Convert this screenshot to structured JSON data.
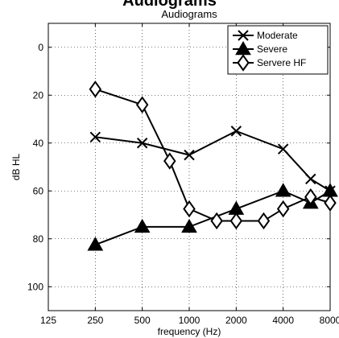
{
  "page_title": "Audiograms",
  "chart_data": {
    "type": "line",
    "title": "Audiograms",
    "xlabel": "frequency (Hz)",
    "ylabel": "dB HL",
    "x_scale": "log",
    "x_ticks": [
      125,
      250,
      500,
      1000,
      2000,
      4000,
      8000
    ],
    "x_tick_labels": [
      "125",
      "250",
      "500",
      "1000",
      "2000",
      "4000",
      "8000"
    ],
    "xlim": [
      125,
      8000
    ],
    "y_ticks": [
      0,
      20,
      40,
      60,
      80,
      100
    ],
    "y_tick_labels": [
      "0",
      "20",
      "40",
      "60",
      "80",
      "100"
    ],
    "ylim": [
      -10,
      110
    ],
    "y_inverted": true,
    "grid": true,
    "legend_position": "top-right",
    "series": [
      {
        "name": "Moderate",
        "marker": "x",
        "color": "#000000",
        "x": [
          250,
          500,
          1000,
          2000,
          4000,
          6000,
          8000
        ],
        "y": [
          37.5,
          40,
          45,
          35,
          42.5,
          55,
          60
        ]
      },
      {
        "name": "Severe",
        "marker": "triangle",
        "color": "#000000",
        "x": [
          250,
          500,
          1000,
          2000,
          4000,
          6000,
          8000
        ],
        "y": [
          82.5,
          75,
          75,
          67.5,
          60,
          65,
          60
        ]
      },
      {
        "name": "Servere HF",
        "marker": "diamond",
        "color": "#000000",
        "x": [
          250,
          500,
          750,
          1000,
          1500,
          2000,
          3000,
          4000,
          6000,
          8000
        ],
        "y": [
          17.5,
          24,
          47.5,
          67.5,
          72.5,
          72.5,
          72.5,
          67.5,
          62.5,
          65
        ]
      }
    ]
  }
}
